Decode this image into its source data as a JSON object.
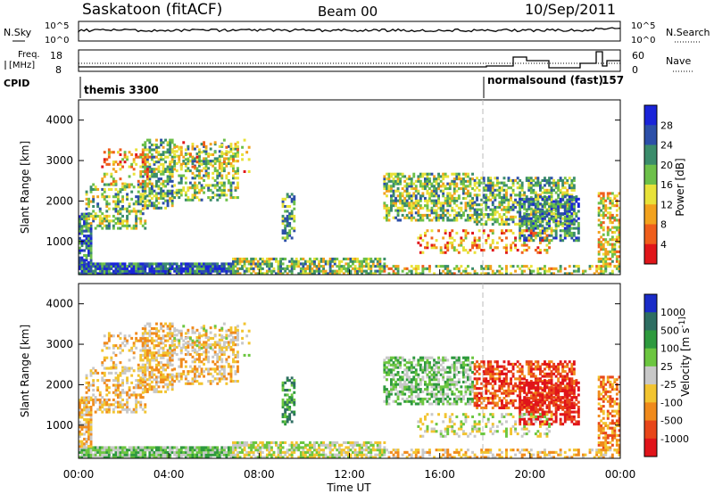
{
  "header": {
    "station": "Saskatoon (fitACF)",
    "beam": "Beam 00",
    "date": "10/Sep/2011"
  },
  "status_panels": {
    "noise_left_label": "N.Sky",
    "noise_right_label": "N.Search",
    "noise_left_ticks": [
      "10^5",
      "10^0"
    ],
    "noise_right_ticks": [
      "10^5",
      "10^0"
    ],
    "freq_label_1": "Freq.",
    "freq_label_2": "[MHz]",
    "freq_ticks": [
      "18",
      "8"
    ],
    "nave_label": "Nave",
    "nave_ticks": [
      "60",
      "0"
    ],
    "cpid_label": "CPID",
    "cpid_1": "themis 3300",
    "cpid_2": "normalsound (fast)",
    "cpid_2_number": "157"
  },
  "chart_data": [
    {
      "type": "heatmap",
      "name": "power",
      "ylabel": "Slant Range [km]",
      "y_ticks": [
        "1000",
        "2000",
        "3000",
        "4000"
      ],
      "colorbar_label": "Power [dB]",
      "colorbar_ticks": [
        "4",
        "8",
        "12",
        "16",
        "20",
        "24",
        "28"
      ],
      "colors": [
        "#1a24d8",
        "#2c4fa8",
        "#3b8c6b",
        "#6dc04a",
        "#e8e23a",
        "#f2a21e",
        "#ef5e1c",
        "#e0161a"
      ],
      "ylim": [
        180,
        4500
      ]
    },
    {
      "type": "heatmap",
      "name": "velocity",
      "ylabel": "Slant Range [km]",
      "y_ticks": [
        "1000",
        "2000",
        "3000",
        "4000"
      ],
      "colorbar_label": "Velocity [m s^-1]",
      "colorbar_ticks": [
        "1000",
        "500",
        "100",
        "25",
        "-25",
        "-100",
        "-500",
        "-1000"
      ],
      "colors": [
        "#1a2cc8",
        "#2e6e62",
        "#2e9a3e",
        "#6cc640",
        "#c8c8c8",
        "#f2c430",
        "#f08a1c",
        "#e8461a",
        "#e0141a"
      ],
      "ylim": [
        180,
        4500
      ],
      "x_ticks": [
        "00:00",
        "04:00",
        "08:00",
        "12:00",
        "16:00",
        "20:00",
        "00:00"
      ],
      "xlabel": "Time UT"
    }
  ],
  "axis": {
    "x_ticks": [
      "00:00",
      "04:00",
      "08:00",
      "12:00",
      "16:00",
      "20:00",
      "00:00"
    ],
    "xlabel": "Time UT",
    "y_ticks": [
      "1000",
      "2000",
      "3000",
      "4000"
    ],
    "ylabel": "Slant Range [km]"
  }
}
